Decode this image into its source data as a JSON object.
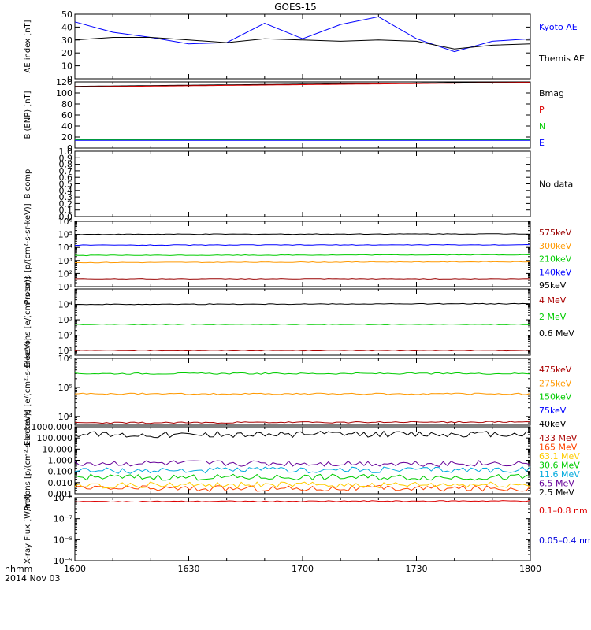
{
  "title": "GOES-15",
  "footer": {
    "unit_label": "hhmm",
    "date_label": "2014 Nov 03"
  },
  "x_axis": {
    "ticks": [
      "1600",
      "1630",
      "1700",
      "1730",
      "1800"
    ]
  },
  "chart_data": [
    {
      "type": "line",
      "ylabel": "AE index [nT]",
      "ylim": [
        0,
        50
      ],
      "yticks": [
        "0",
        "10",
        "20",
        "30",
        "40",
        "50"
      ],
      "x": [
        "1600",
        "1610",
        "1620",
        "1630",
        "1640",
        "1650",
        "1700",
        "1710",
        "1720",
        "1730",
        "1740",
        "1750",
        "1800"
      ],
      "series": [
        {
          "name": "Kyoto AE",
          "color": "#0000ff",
          "values": [
            44,
            36,
            32,
            27,
            28,
            43,
            31,
            42,
            48,
            31,
            21,
            29,
            31
          ]
        },
        {
          "name": "Themis AE",
          "color": "#000000",
          "values": [
            30,
            32,
            32,
            30,
            28,
            31,
            30,
            29,
            30,
            29,
            23,
            26,
            27
          ]
        }
      ]
    },
    {
      "type": "line",
      "ylabel": "B (ENP) [nT]",
      "ylim": [
        0,
        120
      ],
      "yticks": [
        "0",
        "20",
        "40",
        "60",
        "80",
        "100",
        "120"
      ],
      "x": [
        "1600",
        "1800"
      ],
      "series": [
        {
          "name": "Bmag",
          "color": "#000000",
          "values": [
            112,
            120
          ]
        },
        {
          "name": "P",
          "color": "#dd0000",
          "values": [
            111,
            119
          ]
        },
        {
          "name": "N",
          "color": "#00cc00",
          "values": [
            15,
            15
          ]
        },
        {
          "name": "E",
          "color": "#0000ff",
          "values": [
            14,
            14
          ]
        }
      ]
    },
    {
      "type": "line",
      "ylabel": "B comp",
      "ylim": [
        0,
        1
      ],
      "yticks": [
        "0.0",
        "0.1",
        "0.2",
        "0.3",
        "0.4",
        "0.5",
        "0.6",
        "0.7",
        "0.8",
        "0.9",
        "1.0"
      ],
      "series": [],
      "legend_text": "No data"
    },
    {
      "type": "line",
      "ylabel": "Protons [p/(cm²-s-sr-keV)]",
      "scale": "log",
      "ylim": [
        10,
        1000000
      ],
      "yticks": [
        "10¹",
        "10²",
        "10³",
        "10⁴",
        "10⁵",
        "10⁶"
      ],
      "series": [
        {
          "name": "575keV",
          "color": "#990000",
          "values": [
            40,
            40
          ]
        },
        {
          "name": "300keV",
          "color": "#ff9900",
          "values": [
            700,
            800
          ]
        },
        {
          "name": "210keV",
          "color": "#00cc00",
          "values": [
            2500,
            2800
          ]
        },
        {
          "name": "140keV",
          "color": "#0000ff",
          "values": [
            15000,
            16000
          ]
        },
        {
          "name": "95keV",
          "color": "#000000",
          "values": [
            100000,
            110000
          ]
        }
      ]
    },
    {
      "type": "line",
      "ylabel": "Electrons [e/(cm²-s-sr)]",
      "scale": "log",
      "ylim": [
        5,
        100000
      ],
      "yticks": [
        "10¹",
        "10²",
        "10³",
        "10⁴"
      ],
      "series": [
        {
          "name": "4 MeV",
          "color": "#aa0000",
          "values": [
            10,
            10
          ]
        },
        {
          "name": "2 MeV",
          "color": "#00cc00",
          "values": [
            500,
            500
          ]
        },
        {
          "name": "0.6 MeV",
          "color": "#000000",
          "values": [
            10000,
            11000
          ]
        }
      ]
    },
    {
      "type": "line",
      "ylabel": "Electrons [e/(cm²-s-sr-keV)]",
      "scale": "log",
      "ylim": [
        5000,
        1000000
      ],
      "yticks": [
        "10⁴",
        "10⁵",
        "10⁶"
      ],
      "series": [
        {
          "name": "475keV",
          "color": "#aa0000",
          "values": [
            6000,
            6500
          ]
        },
        {
          "name": "275keV",
          "color": "#ff9900",
          "values": [
            60000,
            60000
          ]
        },
        {
          "name": "150keV",
          "color": "#00cc00",
          "values": [
            300000,
            300000
          ]
        },
        {
          "name": "75keV",
          "color": "#0000ff",
          "values": []
        },
        {
          "name": "40keV",
          "color": "#000000",
          "values": []
        }
      ]
    },
    {
      "type": "line",
      "ylabel": "Protons [p/(cm²-s-sr-keV)]",
      "scale": "log",
      "ylim": [
        0.001,
        1000
      ],
      "yticks": [
        "0.001",
        "0.010",
        "0.100",
        "1.000",
        "10.000",
        "100.000",
        "1000.000"
      ],
      "series": [
        {
          "name": "433 MeV",
          "color": "#aa0000",
          "values": []
        },
        {
          "name": "165 MeV",
          "color": "#ff4400",
          "values": [
            0.003,
            0.003
          ]
        },
        {
          "name": "63.1 MeV",
          "color": "#ffcc00",
          "values": [
            0.006,
            0.006
          ]
        },
        {
          "name": "30.6 MeV",
          "color": "#00cc00",
          "values": [
            0.03,
            0.03
          ]
        },
        {
          "name": "11.6 MeV",
          "color": "#00aadd",
          "values": [
            0.12,
            0.15
          ]
        },
        {
          "name": "6.5 MeV",
          "color": "#660099",
          "values": [
            0.5,
            0.5
          ]
        },
        {
          "name": "2.5 MeV",
          "color": "#000000",
          "values": [
            200,
            220
          ]
        }
      ]
    },
    {
      "type": "line",
      "ylabel": "X-ray Flux [W/m²]",
      "scale": "log",
      "ylim": [
        1e-09,
        1e-06
      ],
      "yticks": [
        "10⁻⁹",
        "10⁻⁸",
        "10⁻⁷",
        "10⁻⁶"
      ],
      "series": [
        {
          "name": "0.1–0.8 nm",
          "color": "#dd0000",
          "values": [
            6.5e-07,
            7e-07
          ]
        },
        {
          "name": "0.05–0.4 nm",
          "color": "#0000dd",
          "values": []
        }
      ]
    }
  ]
}
